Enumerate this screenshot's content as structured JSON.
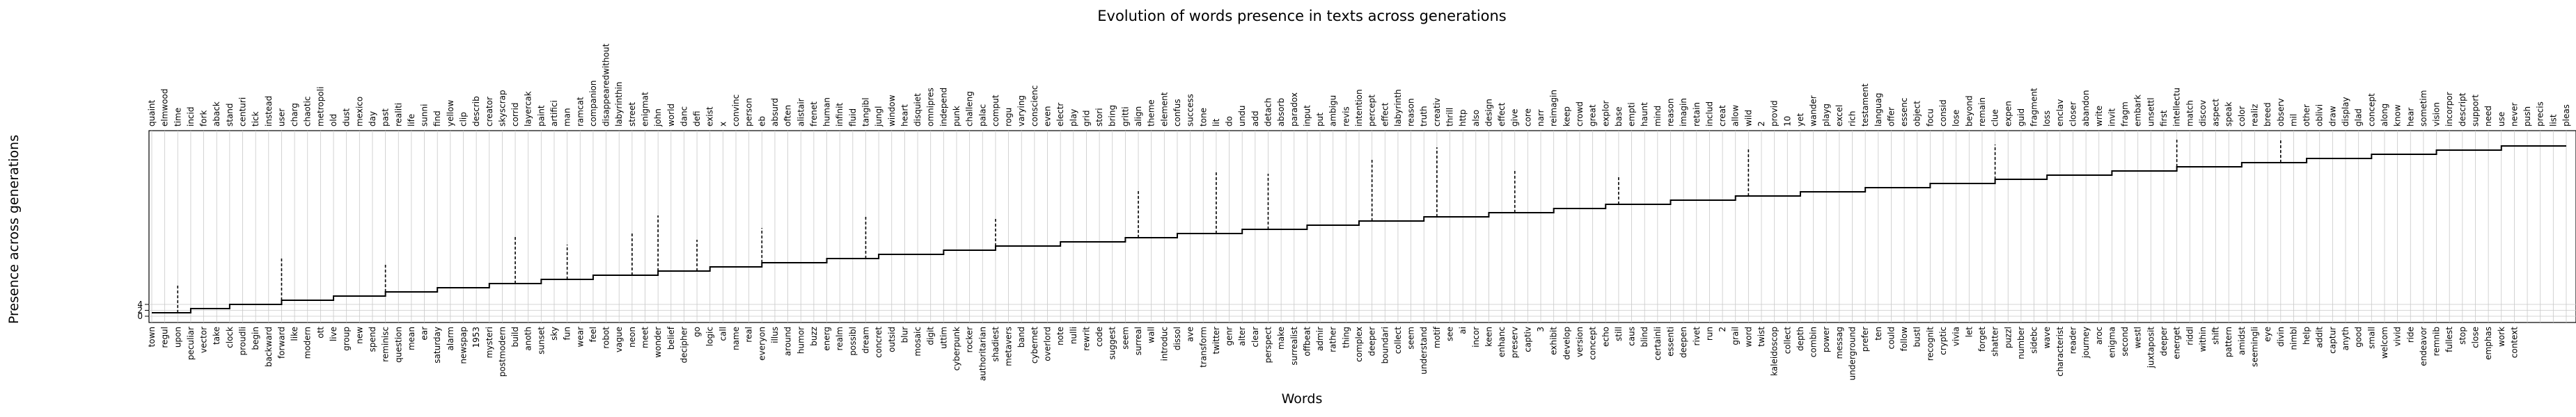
{
  "chart_data": {
    "type": "line",
    "title": "Evolution of words presence in texts across generations",
    "xlabel": "Words",
    "ylabel": "Presence across generations",
    "y_tick_labels": [
      "0",
      "2",
      "4"
    ],
    "grid": true,
    "legend": "none",
    "line_color": "#000000",
    "top_words": [
      "quaint",
      "elmwood",
      "time",
      "incid",
      "fork",
      "aback",
      "stand",
      "centuri",
      "tick",
      "instead",
      "user",
      "charg",
      "chaotic",
      "metropoli",
      "old",
      "dust",
      "mexico",
      "day",
      "past",
      "realiti",
      "life",
      "sunni",
      "find",
      "yellow",
      "clip",
      "describ",
      "creator",
      "skyscrap",
      "corrid",
      "layercak",
      "paint",
      "artifici",
      "man",
      "ramcat",
      "companion",
      "disappearedwithout",
      "labyrinthin",
      "street",
      "enigmat",
      "john",
      "world",
      "danc",
      "defi",
      "exist",
      "x",
      "convinc",
      "person",
      "eb",
      "absurd",
      "often",
      "alistair",
      "frenet",
      "human",
      "infinit",
      "fluid",
      "tangibl",
      "jungl",
      "window",
      "heart",
      "disquiet",
      "omnipres",
      "independ",
      "punk",
      "challeng",
      "palac",
      "comput",
      "rogu",
      "varying",
      "conscienc",
      "even",
      "electr",
      "play",
      "grid",
      "stori",
      "bring",
      "gritti",
      "align",
      "theme",
      "element",
      "confus",
      "success",
      "tone",
      "lit",
      "do",
      "undu",
      "add",
      "detach",
      "absorb",
      "paradox",
      "input",
      "put",
      "ambigu",
      "revis",
      "intention",
      "percept",
      "effect",
      "labyrinth",
      "reason",
      "truth",
      "creativ",
      "thrill",
      "http",
      "also",
      "design",
      "effect",
      "give",
      "core",
      "narr",
      "reimagin",
      "keep",
      "crowd",
      "great",
      "explor",
      "base",
      "empti",
      "haunt",
      "mind",
      "reason",
      "imagin",
      "retain",
      "includ",
      "creat",
      "allow",
      "wild",
      "2",
      "provid",
      "10",
      "yet",
      "wander",
      "playg",
      "excel",
      "rich",
      "testament",
      "languag",
      "offer",
      "essenc",
      "object",
      "focu",
      "consid",
      "lose",
      "beyond",
      "remain",
      "clue",
      "expen",
      "guid",
      "fragment",
      "loss",
      "enclav",
      "closer",
      "abandon",
      "write",
      "invit",
      "fragm",
      "embark",
      "unsettl",
      "first",
      "intellectu",
      "match",
      "discov",
      "aspect",
      "speak",
      "color",
      "realiz",
      "breed",
      "observ",
      "mil",
      "other",
      "oblivi",
      "draw",
      "display",
      "glad",
      "concept",
      "along",
      "know",
      "hear",
      "sometim",
      "vision",
      "incorpor",
      "descript",
      "support",
      "need",
      "use",
      "never",
      "push",
      "precis",
      "list",
      "pleas"
    ],
    "bottom_words": [
      "town",
      "regul",
      "upon",
      "peculiar",
      "vector",
      "take",
      "clock",
      "proudli",
      "begin",
      "backward",
      "forward",
      "like",
      "modern",
      "ott",
      "live",
      "group",
      "new",
      "spend",
      "reminisc",
      "question",
      "mean",
      "ear",
      "saturday",
      "alarm",
      "newspap",
      "1953",
      "mysteri",
      "postmodern",
      "build",
      "anoth",
      "sunset",
      "sky",
      "fun",
      "wear",
      "feel",
      "robot",
      "vague",
      "neon",
      "meet",
      "wonder",
      "belief",
      "decipher",
      "go",
      "logic",
      "call",
      "name",
      "real",
      "everyon",
      "illus",
      "around",
      "humor",
      "buzz",
      "energ",
      "realm",
      "possibl",
      "dream",
      "concret",
      "outsid",
      "blur",
      "mosaic",
      "digit",
      "uttim",
      "cyberpunk",
      "rocker",
      "authoritarian",
      "shadiest",
      "metavers",
      "band",
      "cybernet",
      "overlord",
      "note",
      "nulli",
      "rewrit",
      "code",
      "suggest",
      "seem",
      "surreal",
      "wall",
      "introduc",
      "dissol",
      "ave",
      "transform",
      "twitter",
      "genr",
      "alter",
      "clear",
      "perspect",
      "make",
      "surrealist",
      "offbeat",
      "admir",
      "rather",
      "thing",
      "complex",
      "deeper",
      "boundari",
      "collect",
      "seem",
      "understand",
      "motif",
      "see",
      "ai",
      "incor",
      "keen",
      "enhanc",
      "preserv",
      "captiv",
      "3",
      "exhibit",
      "develop",
      "version",
      "concept",
      "echo",
      "still",
      "caus",
      "blind",
      "certainli",
      "essenti",
      "deepen",
      "rivet",
      "run",
      "2",
      "grail",
      "word",
      "twist",
      "kaleidoscop",
      "collect",
      "depth",
      "combin",
      "power",
      "messag",
      "underground",
      "prefer",
      "ten",
      "could",
      "follow",
      "bustl",
      "recognit",
      "cryptic",
      "vivia",
      "let",
      "forget",
      "shatter",
      "puzzl",
      "number",
      "sidebc",
      "wave",
      "characterist",
      "reader",
      "journey",
      "aroc",
      "enigma",
      "second",
      "westl",
      "juxtaposit",
      "deeper",
      "energet",
      "riddl",
      "within",
      "shift",
      "pattern",
      "amidst",
      "seemingli",
      "eye",
      "divin",
      "nimbl",
      "help",
      "addit",
      "captur",
      "anyth",
      "good",
      "small",
      "welcom",
      "vivid",
      "ride",
      "endeavor",
      "remnib",
      "fullest",
      "stop",
      "close",
      "emphas",
      "work",
      "context"
    ]
  }
}
